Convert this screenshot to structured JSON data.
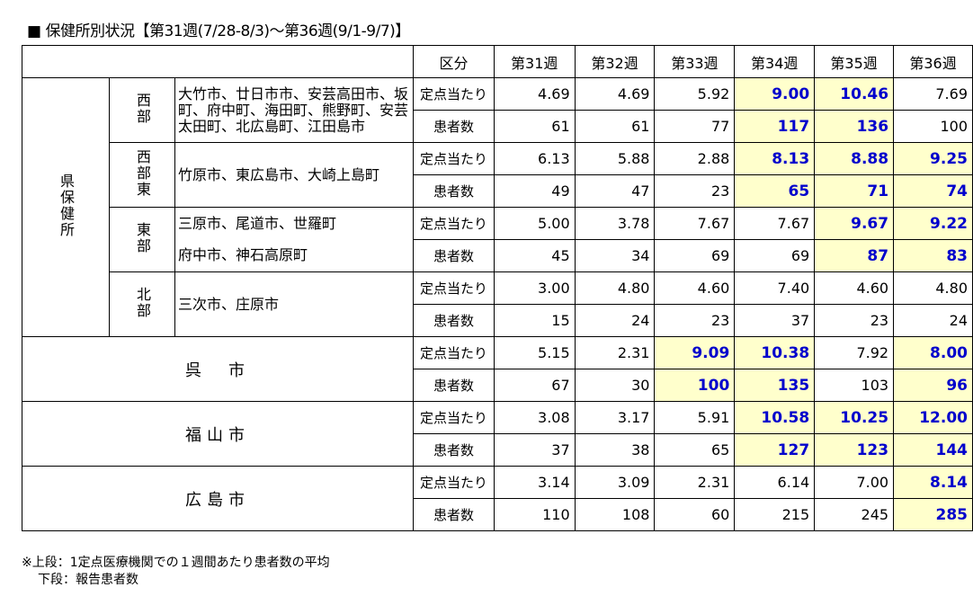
{
  "title": "■ 保健所別状況【第31週(7/28-8/3)～第36週(9/1-9/7)】",
  "header": {
    "kubun": "区分",
    "weeks": [
      "第31週",
      "第32週",
      "第33週",
      "第34週",
      "第35週",
      "第36週"
    ]
  },
  "labels": {
    "rate": "定点当たり",
    "count": "患者数"
  },
  "prefecture_label": "県保健所",
  "groups": [
    {
      "region": "西部",
      "areas": [
        "大竹市、廿日市市、安芸高田市、坂町、府中町、海田町、熊野町、安芸太田町、北広島町、江田島市"
      ],
      "rate": [
        {
          "v": "4.69"
        },
        {
          "v": "4.69"
        },
        {
          "v": "5.92"
        },
        {
          "v": "9.00",
          "hl": true
        },
        {
          "v": "10.46",
          "hl": true
        },
        {
          "v": "7.69"
        }
      ],
      "count": [
        {
          "v": "61"
        },
        {
          "v": "61"
        },
        {
          "v": "77"
        },
        {
          "v": "117",
          "hl": true
        },
        {
          "v": "136",
          "hl": true
        },
        {
          "v": "100"
        }
      ]
    },
    {
      "region": "西部東",
      "areas": [
        "竹原市、東広島市、大崎上島町"
      ],
      "rate": [
        {
          "v": "6.13"
        },
        {
          "v": "5.88"
        },
        {
          "v": "2.88"
        },
        {
          "v": "8.13",
          "hl": true
        },
        {
          "v": "8.88",
          "hl": true
        },
        {
          "v": "9.25",
          "hl": true
        }
      ],
      "count": [
        {
          "v": "49"
        },
        {
          "v": "47"
        },
        {
          "v": "23"
        },
        {
          "v": "65",
          "hl": true
        },
        {
          "v": "71",
          "hl": true
        },
        {
          "v": "74",
          "hl": true
        }
      ]
    },
    {
      "region": "東部",
      "areas": [
        "三原市、尾道市、世羅町",
        "府中市、神石高原町"
      ],
      "rate": [
        {
          "v": "5.00"
        },
        {
          "v": "3.78"
        },
        {
          "v": "7.67"
        },
        {
          "v": "7.67"
        },
        {
          "v": "9.67",
          "hl": true
        },
        {
          "v": "9.22",
          "hl": true
        }
      ],
      "count": [
        {
          "v": "45"
        },
        {
          "v": "34"
        },
        {
          "v": "69"
        },
        {
          "v": "69"
        },
        {
          "v": "87",
          "hl": true
        },
        {
          "v": "83",
          "hl": true
        }
      ]
    },
    {
      "region": "北部",
      "areas": [
        "三次市、庄原市"
      ],
      "rate": [
        {
          "v": "3.00"
        },
        {
          "v": "4.80"
        },
        {
          "v": "4.60"
        },
        {
          "v": "7.40"
        },
        {
          "v": "4.60"
        },
        {
          "v": "4.80"
        }
      ],
      "count": [
        {
          "v": "15"
        },
        {
          "v": "24"
        },
        {
          "v": "23"
        },
        {
          "v": "37"
        },
        {
          "v": "23"
        },
        {
          "v": "24"
        }
      ]
    }
  ],
  "cities": [
    {
      "name": "呉　市",
      "rate": [
        {
          "v": "5.15"
        },
        {
          "v": "2.31"
        },
        {
          "v": "9.09",
          "hl": true
        },
        {
          "v": "10.38",
          "hl": true
        },
        {
          "v": "7.92"
        },
        {
          "v": "8.00",
          "hl": true
        }
      ],
      "count": [
        {
          "v": "67"
        },
        {
          "v": "30"
        },
        {
          "v": "100",
          "hl": true
        },
        {
          "v": "135",
          "hl": true
        },
        {
          "v": "103"
        },
        {
          "v": "96",
          "hl": true
        }
      ]
    },
    {
      "name": "福山市",
      "rate": [
        {
          "v": "3.08"
        },
        {
          "v": "3.17"
        },
        {
          "v": "5.91"
        },
        {
          "v": "10.58",
          "hl": true
        },
        {
          "v": "10.25",
          "hl": true
        },
        {
          "v": "12.00",
          "hl": true
        }
      ],
      "count": [
        {
          "v": "37"
        },
        {
          "v": "38"
        },
        {
          "v": "65"
        },
        {
          "v": "127",
          "hl": true
        },
        {
          "v": "123",
          "hl": true
        },
        {
          "v": "144",
          "hl": true
        }
      ]
    },
    {
      "name": "広島市",
      "rate": [
        {
          "v": "3.14"
        },
        {
          "v": "3.09"
        },
        {
          "v": "2.31"
        },
        {
          "v": "6.14"
        },
        {
          "v": "7.00"
        },
        {
          "v": "8.14",
          "hl": true
        }
      ],
      "count": [
        {
          "v": "110"
        },
        {
          "v": "108"
        },
        {
          "v": "60"
        },
        {
          "v": "215"
        },
        {
          "v": "245"
        },
        {
          "v": "285",
          "hl": true
        }
      ]
    }
  ],
  "notes": [
    "※上段：1定点医療機関での１週間あたり患者数の平均",
    "下段：報告患者数"
  ]
}
